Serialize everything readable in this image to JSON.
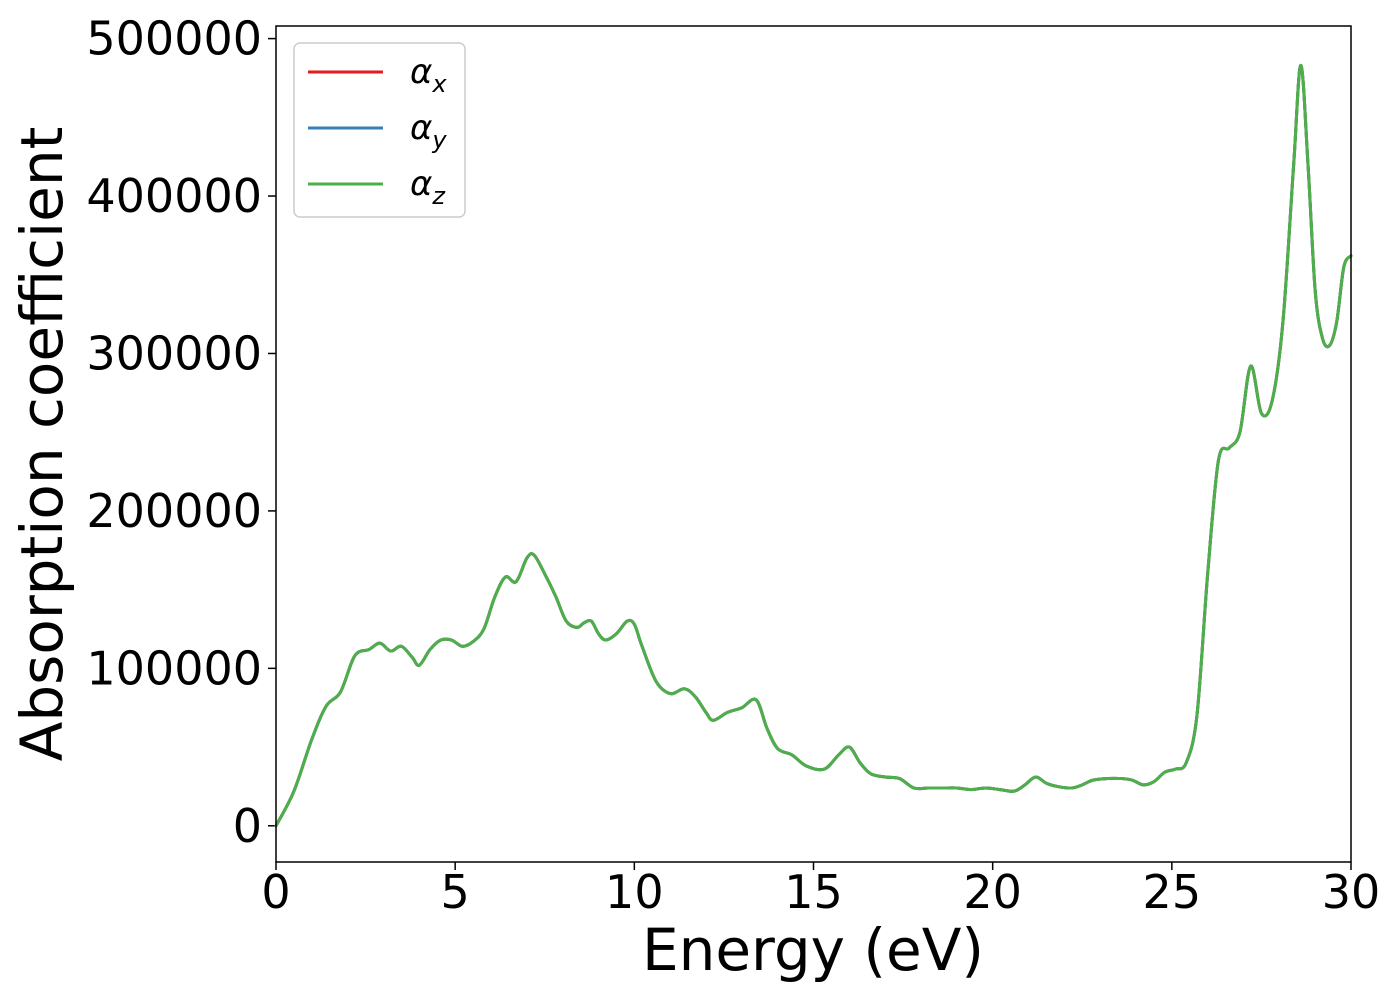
{
  "chart_data": {
    "type": "line",
    "title": "",
    "xlabel": "Energy (eV)",
    "ylabel": "Absorption coefficient",
    "xlim": [
      0,
      30
    ],
    "ylim": [
      -23000,
      508000
    ],
    "xticks": [
      0,
      5,
      10,
      15,
      20,
      25,
      30
    ],
    "xtick_labels": [
      "0",
      "5",
      "10",
      "15",
      "20",
      "25",
      "30"
    ],
    "yticks": [
      0,
      100000,
      200000,
      300000,
      400000,
      500000
    ],
    "ytick_labels": [
      "0",
      "100000",
      "200000",
      "300000",
      "400000",
      "500000"
    ],
    "grid": false,
    "legend": "top-left",
    "series": [
      {
        "name": "α",
        "subscript": "x",
        "color": "#e41a1c"
      },
      {
        "name": "α",
        "subscript": "y",
        "color": "#377eb8"
      },
      {
        "name": "α",
        "subscript": "z",
        "color": "#4daf4a"
      }
    ],
    "x": [
      0,
      0.5,
      1.0,
      1.4,
      1.8,
      2.2,
      2.6,
      2.9,
      3.2,
      3.5,
      3.8,
      4.0,
      4.3,
      4.6,
      4.9,
      5.2,
      5.5,
      5.8,
      6.1,
      6.4,
      6.7,
      7.0,
      7.2,
      7.5,
      7.8,
      8.1,
      8.4,
      8.6,
      8.8,
      9.0,
      9.2,
      9.5,
      9.8,
      10.0,
      10.2,
      10.6,
      11.0,
      11.4,
      11.7,
      12.0,
      12.2,
      12.6,
      13.0,
      13.4,
      13.7,
      14.0,
      14.4,
      14.8,
      15.3,
      15.7,
      16.0,
      16.3,
      16.6,
      17.0,
      17.4,
      17.8,
      18.2,
      18.6,
      19.0,
      19.4,
      19.8,
      20.2,
      20.6,
      20.9,
      21.2,
      21.5,
      21.8,
      22.2,
      22.5,
      22.8,
      23.2,
      23.6,
      23.9,
      24.2,
      24.5,
      24.8,
      25.1,
      25.4,
      25.7,
      26.0,
      26.3,
      26.6,
      26.9,
      27.2,
      27.5,
      27.8,
      28.1,
      28.4,
      28.6,
      28.8,
      29.0,
      29.2,
      29.4,
      29.6,
      29.8,
      30.0
    ],
    "values": [
      0,
      22000,
      55000,
      76000,
      85000,
      108000,
      112000,
      116000,
      111000,
      114000,
      107000,
      102000,
      112000,
      118000,
      118000,
      114000,
      117000,
      125000,
      145000,
      158000,
      155000,
      170000,
      172000,
      160000,
      146000,
      130000,
      126000,
      129000,
      130000,
      122000,
      118000,
      122000,
      130000,
      128000,
      115000,
      92000,
      84000,
      87000,
      82000,
      72000,
      67000,
      72000,
      75000,
      80000,
      62000,
      49000,
      45000,
      38000,
      36000,
      45000,
      50000,
      40000,
      33000,
      31000,
      30000,
      24000,
      24000,
      24000,
      24000,
      23000,
      24000,
      23000,
      22000,
      26000,
      31000,
      27000,
      25000,
      24000,
      26000,
      29000,
      30000,
      30000,
      29000,
      26000,
      28000,
      34000,
      36000,
      40000,
      70000,
      160000,
      232000,
      240000,
      250000,
      292000,
      262000,
      270000,
      320000,
      420000,
      483000,
      420000,
      340000,
      310000,
      305000,
      320000,
      355000,
      362000
    ]
  }
}
